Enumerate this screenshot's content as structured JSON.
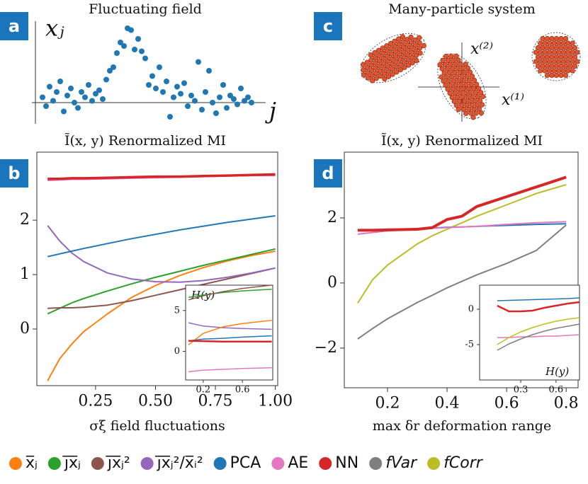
{
  "panels": [
    "a",
    "b",
    "c",
    "d"
  ],
  "diagram": {
    "title": "Many-particle system",
    "labels": [
      "x⁽²⁾",
      "x⁽¹⁾"
    ]
  },
  "legend": [
    {
      "name": "x̅ⱼ",
      "color": "#ff7f0e"
    },
    {
      "name": "j̅x̅ⱼ",
      "color": "#2ca02c"
    },
    {
      "name": "j̅x̅ⱼ²",
      "color": "#8c564b"
    },
    {
      "name": "j̅x̅ⱼ²/x̅ᵢ²",
      "color": "#9467bd"
    },
    {
      "name": "PCA",
      "color": "#1f77b4"
    },
    {
      "name": "AE",
      "color": "#e377c2"
    },
    {
      "name": "NN",
      "color": "#d62728"
    },
    {
      "name": "fVar",
      "color": "#7f7f7f"
    },
    {
      "name": "fCorr",
      "color": "#bcbd22"
    }
  ],
  "chart_data": [
    {
      "type": "scatter",
      "title": "Fluctuating field",
      "xlabel": "j",
      "ylabel": "xⱼ",
      "color": "#1f77b4",
      "xlim": [
        -2,
        64
      ],
      "ylim": [
        -1.2,
        5
      ],
      "x": [
        1,
        2,
        3,
        4,
        5,
        6,
        7,
        8,
        9,
        10,
        11,
        12,
        13,
        14,
        15,
        16,
        17,
        18,
        19,
        20,
        21,
        22,
        23,
        24,
        25,
        26,
        27,
        28,
        29,
        30,
        31,
        32,
        33,
        34,
        35,
        36,
        37,
        38,
        39,
        40,
        41,
        42,
        43,
        44,
        45,
        46,
        47,
        48,
        49,
        50,
        51,
        52,
        53,
        54,
        55,
        56,
        57,
        58,
        59,
        60
      ],
      "values": [
        0.3,
        -0.2,
        0.9,
        0.1,
        0.6,
        1.2,
        -0.5,
        0.4,
        0.8,
        0.0,
        -0.3,
        0.6,
        0.3,
        1.0,
        0.1,
        0.5,
        0.7,
        0.2,
        1.3,
        1.8,
        2.0,
        2.8,
        3.4,
        3.2,
        4.2,
        4.1,
        3.0,
        3.6,
        2.9,
        2.5,
        1.0,
        1.5,
        0.8,
        2.0,
        0.6,
        1.2,
        -0.8,
        0.3,
        0.9,
        0.5,
        1.1,
        -0.2,
        0.4,
        0.1,
        2.3,
        -0.4,
        0.6,
        1.8,
        0.0,
        -0.6,
        0.3,
        1.0,
        -0.3,
        0.4,
        0.2,
        -0.1,
        0.8,
        0.1,
        0.3,
        0.0
      ]
    },
    {
      "type": "line",
      "title": "Ĩ(x, y) Renormalized MI",
      "xlabel": "σξ  field fluctuations",
      "xlim": [
        0.005,
        1.01
      ],
      "ylim": [
        -1.04,
        3.25
      ],
      "xticks": [
        0.25,
        {
          "value": 0.5,
          "label": "0.50"
        },
        {
          "value": 0.75,
          "label": "0.75"
        },
        {
          "value": 1.0,
          "label": "1.00"
        }
      ],
      "yticks": [
        0,
        1,
        2
      ],
      "x": [
        0.05,
        0.1,
        0.15,
        0.2,
        0.3,
        0.4,
        0.5,
        0.6,
        0.7,
        0.8,
        0.9,
        1.0
      ],
      "series": [
        {
          "color": "#ff7f0e",
          "values": [
            -0.95,
            -0.55,
            -0.28,
            -0.05,
            0.28,
            0.58,
            0.8,
            0.98,
            1.13,
            1.25,
            1.35,
            1.43
          ]
        },
        {
          "color": "#2ca02c",
          "values": [
            0.28,
            0.38,
            0.48,
            0.56,
            0.7,
            0.83,
            0.95,
            1.06,
            1.17,
            1.27,
            1.37,
            1.47
          ]
        },
        {
          "color": "#8c564b",
          "values": [
            0.38,
            0.39,
            0.39,
            0.4,
            0.44,
            0.52,
            0.62,
            0.72,
            0.82,
            0.92,
            1.02,
            1.12
          ]
        },
        {
          "color": "#9467bd",
          "values": [
            1.9,
            1.62,
            1.4,
            1.24,
            1.03,
            0.92,
            0.87,
            0.86,
            0.89,
            0.95,
            1.03,
            1.12
          ]
        },
        {
          "color": "#1f77b4",
          "values": [
            1.33,
            1.38,
            1.43,
            1.48,
            1.57,
            1.66,
            1.74,
            1.82,
            1.89,
            1.96,
            2.02,
            2.08
          ]
        },
        {
          "color": "#e377c2",
          "values": [
            2.73,
            2.74,
            2.75,
            2.75,
            2.76,
            2.77,
            2.78,
            2.79,
            2.8,
            2.81,
            2.82,
            2.82
          ]
        },
        {
          "color": "#d62728",
          "width": 3.5,
          "values": [
            2.76,
            2.76,
            2.77,
            2.77,
            2.78,
            2.79,
            2.8,
            2.8,
            2.81,
            2.82,
            2.83,
            2.84
          ]
        }
      ]
    },
    {
      "type": "line",
      "title": "H(y)",
      "xlim": [
        0.02,
        0.91
      ],
      "ylim": [
        -3.5,
        8.1
      ],
      "xticks": [
        0.2,
        0.6
      ],
      "yticks": [
        0,
        5
      ],
      "x": [
        0.05,
        0.2,
        0.4,
        0.6,
        0.9
      ],
      "series": [
        {
          "color": "#2ca02c",
          "values": [
            6.6,
            6.9,
            7.2,
            7.4,
            7.6
          ]
        },
        {
          "color": "#8c564b",
          "values": [
            6.3,
            6.8,
            7.3,
            7.7,
            8.1
          ]
        },
        {
          "color": "#9467bd",
          "values": [
            3.5,
            3.1,
            2.9,
            2.8,
            2.7
          ]
        },
        {
          "color": "#ff7f0e",
          "values": [
            0.8,
            2.2,
            3.0,
            3.4,
            3.8
          ]
        },
        {
          "color": "#1f77b4",
          "values": [
            1.3,
            1.5,
            1.6,
            1.75,
            1.9
          ]
        },
        {
          "color": "#d62728",
          "width": 2.5,
          "values": [
            1.3,
            1.25,
            1.2,
            1.2,
            1.2
          ]
        },
        {
          "color": "#e377c2",
          "values": [
            -2.5,
            -2.3,
            -2.2,
            -2.1,
            -2.0
          ]
        }
      ]
    },
    {
      "type": "line",
      "title": "Ĩ(x, y) Renormalized MI",
      "xlabel": "max δr  deformation range",
      "xlim": [
        0.055,
        0.84
      ],
      "ylim": [
        -3.22,
        4.02
      ],
      "xticks": [
        0.2,
        0.4,
        0.6,
        0.8
      ],
      "yticks": [
        {
          "value": -2,
          "label": "−2"
        },
        0,
        2
      ],
      "x": [
        0.1,
        0.15,
        0.2,
        0.3,
        0.35,
        0.4,
        0.45,
        0.5,
        0.6,
        0.7,
        0.8
      ],
      "series": [
        {
          "color": "#7f7f7f",
          "values": [
            -1.72,
            -1.4,
            -1.1,
            -0.6,
            -0.38,
            -0.15,
            0.05,
            0.25,
            0.6,
            1.0,
            1.78
          ]
        },
        {
          "color": "#bcbd22",
          "values": [
            -0.62,
            0.1,
            0.55,
            1.2,
            1.45,
            1.65,
            1.85,
            2.05,
            2.4,
            2.75,
            3.02
          ]
        },
        {
          "color": "#1f77b4",
          "values": [
            1.6,
            1.62,
            1.64,
            1.67,
            1.69,
            1.71,
            1.72,
            1.74,
            1.77,
            1.8,
            1.82
          ]
        },
        {
          "color": "#e377c2",
          "values": [
            1.5,
            1.55,
            1.6,
            1.65,
            1.68,
            1.7,
            1.72,
            1.74,
            1.8,
            1.85,
            1.88
          ]
        },
        {
          "color": "#d62728",
          "width": 4,
          "values": [
            1.62,
            1.62,
            1.63,
            1.65,
            1.7,
            1.95,
            2.05,
            2.35,
            2.65,
            2.95,
            3.25
          ]
        }
      ]
    },
    {
      "type": "line",
      "title": "H(y)",
      "xlim": [
        -0.05,
        0.8
      ],
      "ylim": [
        -10,
        3.4
      ],
      "xticks": [
        0.3,
        0.6
      ],
      "yticks": [
        -5,
        0
      ],
      "x": [
        0.1,
        0.2,
        0.3,
        0.4,
        0.5,
        0.6,
        0.7,
        0.8
      ],
      "series": [
        {
          "color": "#1f77b4",
          "values": [
            1.2,
            1.25,
            1.3,
            1.35,
            1.4,
            1.45,
            1.5,
            1.6
          ]
        },
        {
          "color": "#d62728",
          "width": 2.5,
          "values": [
            0.5,
            -0.3,
            -0.3,
            -0.2,
            0.2,
            0.5,
            0.8,
            1.0
          ]
        },
        {
          "color": "#e377c2",
          "values": [
            -4.0,
            -4.0,
            -3.9,
            -3.9,
            -3.8,
            -3.8,
            -3.7,
            -3.6
          ]
        },
        {
          "color": "#bcbd22",
          "values": [
            -5.0,
            -4.0,
            -3.2,
            -2.6,
            -2.1,
            -1.7,
            -1.4,
            -1.2
          ]
        },
        {
          "color": "#7f7f7f",
          "values": [
            -5.8,
            -4.9,
            -4.2,
            -3.6,
            -3.1,
            -2.7,
            -2.4,
            -2.1
          ]
        }
      ]
    }
  ]
}
